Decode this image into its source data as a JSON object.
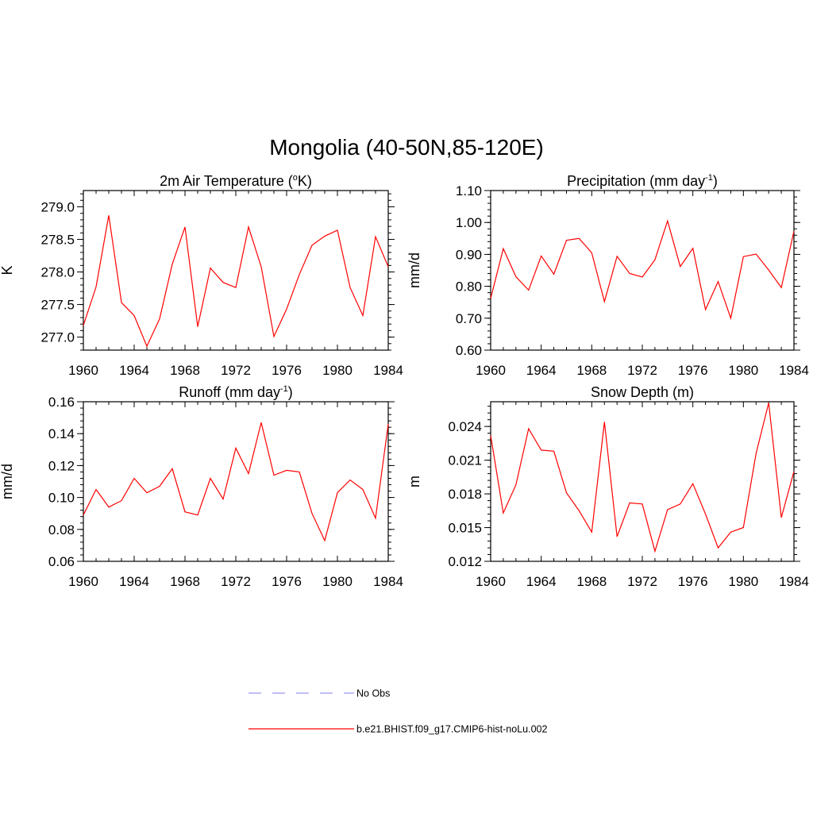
{
  "title": "Mongolia (40-50N,85-120E)",
  "colors": {
    "model": "#ff0000",
    "obs": "#9999ee",
    "axis": "#000000"
  },
  "legend": {
    "position": "bottom-center",
    "items": [
      {
        "label": "No Obs",
        "style": "dashed",
        "color": "#9999ee"
      },
      {
        "label": "b.e21.BHIST.f09_g17.CMIP6-hist-noLu.002",
        "style": "solid",
        "color": "#ff0000"
      }
    ]
  },
  "chart_data": [
    {
      "type": "line",
      "title_main": "2m Air Temperature (",
      "title_sup": "o",
      "title_tail": "K)",
      "ylabel": "K",
      "xlabel": "",
      "xlim": [
        1960,
        1984
      ],
      "ylim": [
        276.8,
        279.25
      ],
      "xticks": [
        1960,
        1964,
        1968,
        1972,
        1976,
        1980,
        1984
      ],
      "yticks": [
        277.0,
        277.5,
        278.0,
        278.5,
        279.0
      ],
      "ytick_labels": [
        "277.0",
        "277.5",
        "278.0",
        "278.5",
        "279.0"
      ],
      "minor_step": 0.1,
      "series": [
        {
          "name": "b.e21.BHIST.f09_g17.CMIP6-hist-noLu.002",
          "x": [
            1960,
            1961,
            1962,
            1963,
            1964,
            1965,
            1966,
            1967,
            1968,
            1969,
            1970,
            1971,
            1972,
            1973,
            1974,
            1975,
            1976,
            1977,
            1978,
            1979,
            1980,
            1981,
            1982,
            1983,
            1984
          ],
          "values": [
            277.18,
            277.77,
            278.87,
            277.53,
            277.33,
            276.86,
            277.28,
            278.12,
            278.69,
            277.16,
            278.06,
            277.84,
            277.76,
            278.69,
            278.08,
            277.01,
            277.43,
            277.96,
            278.41,
            278.55,
            278.64,
            277.76,
            277.33,
            278.54,
            278.08
          ]
        }
      ]
    },
    {
      "type": "line",
      "title_main": "Precipitation (mm day",
      "title_sup": "-1",
      "title_tail": ")",
      "ylabel": "mm/d",
      "xlabel": "",
      "xlim": [
        1960,
        1984
      ],
      "ylim": [
        0.6,
        1.1
      ],
      "xticks": [
        1960,
        1964,
        1968,
        1972,
        1976,
        1980,
        1984
      ],
      "yticks": [
        0.6,
        0.7,
        0.8,
        0.9,
        1.0,
        1.1
      ],
      "ytick_labels": [
        "0.60",
        "0.70",
        "0.80",
        "0.90",
        "1.00",
        "1.10"
      ],
      "minor_step": 0.02,
      "series": [
        {
          "name": "b.e21.BHIST.f09_g17.CMIP6-hist-noLu.002",
          "x": [
            1960,
            1961,
            1962,
            1963,
            1964,
            1965,
            1966,
            1967,
            1968,
            1969,
            1970,
            1971,
            1972,
            1973,
            1974,
            1975,
            1976,
            1977,
            1978,
            1979,
            1980,
            1981,
            1982,
            1983,
            1984
          ],
          "values": [
            0.762,
            0.918,
            0.83,
            0.788,
            0.895,
            0.838,
            0.944,
            0.95,
            0.905,
            0.752,
            0.894,
            0.84,
            0.829,
            0.883,
            1.005,
            0.862,
            0.919,
            0.727,
            0.815,
            0.7,
            0.893,
            0.901,
            0.851,
            0.796,
            0.973
          ]
        }
      ]
    },
    {
      "type": "line",
      "title_main": "Runoff (mm day",
      "title_sup": "-1",
      "title_tail": ")",
      "ylabel": "mm/d",
      "xlabel": "",
      "xlim": [
        1960,
        1984
      ],
      "ylim": [
        0.06,
        0.16
      ],
      "xticks": [
        1960,
        1964,
        1968,
        1972,
        1976,
        1980,
        1984
      ],
      "yticks": [
        0.06,
        0.08,
        0.1,
        0.12,
        0.14,
        0.16
      ],
      "ytick_labels": [
        "0.06",
        "0.08",
        "0.10",
        "0.12",
        "0.14",
        "0.16"
      ],
      "minor_step": 0.004,
      "series": [
        {
          "name": "b.e21.BHIST.f09_g17.CMIP6-hist-noLu.002",
          "x": [
            1960,
            1961,
            1962,
            1963,
            1964,
            1965,
            1966,
            1967,
            1968,
            1969,
            1970,
            1971,
            1972,
            1973,
            1974,
            1975,
            1976,
            1977,
            1978,
            1979,
            1980,
            1981,
            1982,
            1983,
            1984
          ],
          "values": [
            0.089,
            0.105,
            0.094,
            0.098,
            0.112,
            0.103,
            0.107,
            0.118,
            0.091,
            0.089,
            0.112,
            0.099,
            0.131,
            0.115,
            0.147,
            0.114,
            0.117,
            0.116,
            0.09,
            0.073,
            0.103,
            0.111,
            0.105,
            0.087,
            0.146
          ]
        }
      ]
    },
    {
      "type": "line",
      "title_main": "Snow Depth (m)",
      "title_sup": "",
      "title_tail": "",
      "ylabel": "m",
      "xlabel": "",
      "xlim": [
        1960,
        1984
      ],
      "ylim": [
        0.012,
        0.0262
      ],
      "xticks": [
        1960,
        1964,
        1968,
        1972,
        1976,
        1980,
        1984
      ],
      "yticks": [
        0.012,
        0.015,
        0.018,
        0.021,
        0.024
      ],
      "ytick_labels": [
        "0.012",
        "0.015",
        "0.018",
        "0.021",
        "0.024"
      ],
      "minor_step": 0.0006,
      "series": [
        {
          "name": "b.e21.BHIST.f09_g17.CMIP6-hist-noLu.002",
          "x": [
            1960,
            1961,
            1962,
            1963,
            1964,
            1965,
            1966,
            1967,
            1968,
            1969,
            1970,
            1971,
            1972,
            1973,
            1974,
            1975,
            1976,
            1977,
            1978,
            1979,
            1980,
            1981,
            1982,
            1983,
            1984
          ],
          "values": [
            0.0232,
            0.0163,
            0.0188,
            0.0238,
            0.0219,
            0.0218,
            0.0181,
            0.0165,
            0.0146,
            0.0244,
            0.0142,
            0.0172,
            0.0171,
            0.0129,
            0.0166,
            0.0171,
            0.0189,
            0.0162,
            0.0132,
            0.0146,
            0.015,
            0.0216,
            0.0261,
            0.0159,
            0.02
          ]
        }
      ]
    }
  ]
}
